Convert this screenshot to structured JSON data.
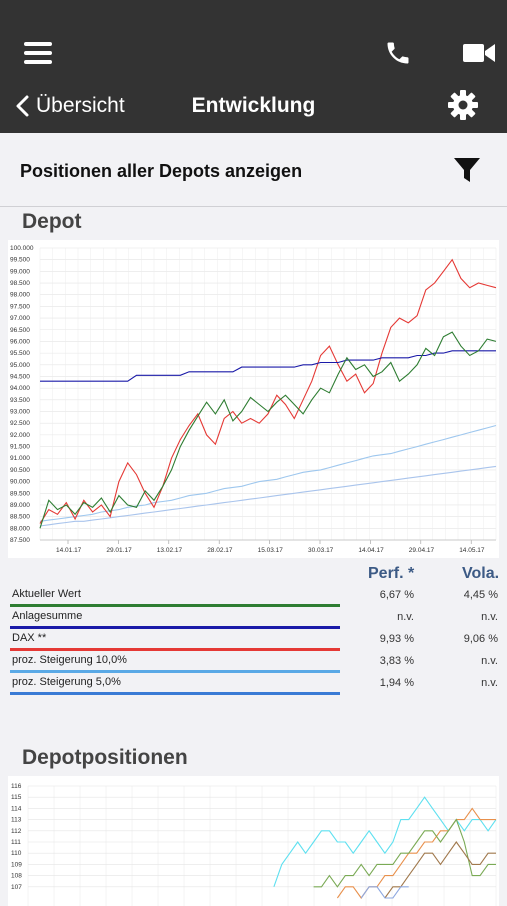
{
  "header": {
    "title": "Entwicklung",
    "back_label": "Übersicht"
  },
  "filter": {
    "label": "Positionen aller Depots anzeigen"
  },
  "depot": {
    "title": "Depot",
    "chart_data": {
      "type": "line",
      "ylim": [
        87500,
        100000
      ],
      "y_ticks": [
        "100.000",
        "99.500",
        "99.000",
        "98.500",
        "98.000",
        "97.500",
        "97.000",
        "96.500",
        "96.000",
        "95.500",
        "95.000",
        "94.500",
        "94.000",
        "93.500",
        "93.000",
        "92.500",
        "92.000",
        "91.500",
        "91.000",
        "90.500",
        "90.000",
        "89.500",
        "89.000",
        "88.500",
        "88.000",
        "87.500"
      ],
      "x_ticks": [
        "14.01.17",
        "29.01.17",
        "13.02.17",
        "28.02.17",
        "15.03.17",
        "30.03.17",
        "14.04.17",
        "29.04.17",
        "14.05.17"
      ],
      "series": [
        {
          "color": "#2e7d32",
          "values": [
            88000,
            89200,
            88800,
            89000,
            88600,
            89100,
            88900,
            89300,
            88700,
            89400,
            89000,
            88900,
            89600,
            89200,
            89800,
            90500,
            91500,
            92200,
            92800,
            93400,
            92900,
            93500,
            92600,
            93000,
            93600,
            93300,
            93000,
            93400,
            93700,
            93300,
            92900,
            93500,
            94000,
            93800,
            94600,
            95300,
            94800,
            95000,
            94500,
            94700,
            95100,
            94300,
            94600,
            95000,
            95700,
            95400,
            96200,
            96400,
            95800,
            95400,
            95600,
            96100,
            96000
          ]
        },
        {
          "color": "#1a1aa8",
          "values": [
            94300,
            94300,
            94300,
            94300,
            94300,
            94300,
            94300,
            94300,
            94300,
            94300,
            94300,
            94550,
            94550,
            94550,
            94550,
            94550,
            94550,
            94700,
            94700,
            94700,
            94700,
            94700,
            94700,
            94900,
            94900,
            94900,
            94900,
            94900,
            94900,
            94900,
            95000,
            95000,
            95100,
            95100,
            95100,
            95200,
            95200,
            95200,
            95200,
            95300,
            95300,
            95300,
            95300,
            95400,
            95400,
            95500,
            95500,
            95600,
            95600,
            95600,
            95600,
            95600,
            95600
          ]
        },
        {
          "color": "#e53935",
          "values": [
            88200,
            88800,
            88600,
            89100,
            88400,
            89200,
            88700,
            89000,
            88500,
            90000,
            90800,
            90300,
            89500,
            88900,
            89800,
            91000,
            91800,
            92400,
            92900,
            92000,
            91600,
            92700,
            93000,
            92500,
            92700,
            92500,
            92900,
            93700,
            93300,
            92700,
            93500,
            94300,
            95400,
            95800,
            95000,
            94300,
            94600,
            93800,
            94200,
            95500,
            96600,
            97000,
            96800,
            97100,
            98200,
            98500,
            99000,
            99500,
            98700,
            98300,
            98500,
            98400,
            98300
          ]
        },
        {
          "color": "#9ec7ee",
          "values": [
            88300,
            88350,
            88400,
            88450,
            88500,
            88550,
            88600,
            88700,
            88750,
            88800,
            88900,
            88950,
            89000,
            89100,
            89150,
            89200,
            89300,
            89400,
            89450,
            89500,
            89600,
            89700,
            89750,
            89800,
            89900,
            90000,
            90050,
            90100,
            90200,
            90300,
            90400,
            90450,
            90500,
            90600,
            90700,
            90800,
            90900,
            91000,
            91100,
            91150,
            91200,
            91300,
            91400,
            91500,
            91600,
            91700,
            91800,
            91900,
            92000,
            92100,
            92200,
            92300,
            92400
          ]
        },
        {
          "color": "#a9c4ec",
          "values": [
            88100,
            88150,
            88200,
            88250,
            88300,
            88300,
            88350,
            88400,
            88450,
            88500,
            88550,
            88600,
            88650,
            88700,
            88750,
            88800,
            88850,
            88900,
            88950,
            89000,
            89050,
            89100,
            89150,
            89200,
            89250,
            89300,
            89350,
            89400,
            89450,
            89500,
            89550,
            89600,
            89650,
            89700,
            89750,
            89800,
            89850,
            89900,
            89950,
            90000,
            90050,
            90100,
            90150,
            90200,
            90250,
            90300,
            90350,
            90400,
            90450,
            90500,
            90550,
            90600,
            90650
          ]
        }
      ]
    }
  },
  "legend": {
    "perf_header": "Perf. *",
    "vola_header": "Vola.",
    "rows": [
      {
        "name": "Aktueller Wert",
        "perf": "6,67 %",
        "vola": "4,45 %",
        "color": "#2e7d32"
      },
      {
        "name": "Anlagesumme",
        "perf": "n.v.",
        "vola": "n.v.",
        "color": "#1a1aa8"
      },
      {
        "name": "DAX **",
        "perf": "9,93 %",
        "vola": "9,06 %",
        "color": "#e53935"
      },
      {
        "name": "proz. Steigerung 10,0%",
        "perf": "3,83 %",
        "vola": "n.v.",
        "color": "#5aa9e6"
      },
      {
        "name": "proz. Steigerung 5,0%",
        "perf": "1,94 %",
        "vola": "n.v.",
        "color": "#3a7bd5"
      }
    ]
  },
  "positions": {
    "title": "Depotpositionen",
    "chart_data": {
      "type": "line",
      "ylim": [
        106,
        116
      ],
      "y_ticks": [
        "116",
        "115",
        "114",
        "113",
        "112",
        "111",
        "110",
        "109",
        "108",
        "107"
      ],
      "series": [
        {
          "color": "#5ee0f0",
          "values": [
            null,
            null,
            null,
            null,
            null,
            null,
            null,
            null,
            null,
            null,
            null,
            null,
            null,
            null,
            null,
            null,
            null,
            null,
            null,
            null,
            null,
            null,
            null,
            null,
            null,
            null,
            null,
            null,
            null,
            null,
            null,
            107,
            109,
            110,
            111,
            110,
            111,
            112,
            112,
            111,
            111,
            110,
            111,
            112,
            111,
            110,
            111,
            113,
            113,
            114,
            115,
            114,
            113,
            112,
            113,
            112,
            113,
            113,
            112,
            113
          ]
        },
        {
          "color": "#e8904c",
          "values": [
            null,
            null,
            null,
            null,
            null,
            null,
            null,
            null,
            null,
            null,
            null,
            null,
            null,
            null,
            null,
            null,
            null,
            null,
            null,
            null,
            null,
            null,
            null,
            null,
            null,
            null,
            null,
            null,
            null,
            null,
            null,
            null,
            null,
            null,
            null,
            null,
            null,
            null,
            null,
            106,
            107,
            107,
            106,
            107,
            107,
            108,
            108,
            109,
            110,
            110,
            111,
            111,
            112,
            112,
            113,
            113,
            114,
            113,
            113,
            113
          ]
        },
        {
          "color": "#7aaa55",
          "values": [
            null,
            null,
            null,
            null,
            null,
            null,
            null,
            null,
            null,
            null,
            null,
            null,
            null,
            null,
            null,
            null,
            null,
            null,
            null,
            null,
            null,
            null,
            null,
            null,
            null,
            null,
            null,
            null,
            null,
            null,
            null,
            null,
            null,
            null,
            null,
            null,
            107,
            107,
            108,
            107,
            108,
            108,
            109,
            108,
            109,
            109,
            109,
            110,
            110,
            111,
            112,
            112,
            111,
            112,
            113,
            111,
            108,
            108,
            109,
            109
          ]
        },
        {
          "color": "#a0784c",
          "values": [
            null,
            null,
            null,
            null,
            null,
            null,
            null,
            null,
            null,
            null,
            null,
            null,
            null,
            null,
            null,
            null,
            null,
            null,
            null,
            null,
            null,
            null,
            null,
            null,
            null,
            null,
            null,
            null,
            null,
            null,
            null,
            null,
            null,
            null,
            null,
            null,
            null,
            null,
            null,
            null,
            null,
            null,
            null,
            null,
            null,
            106,
            107,
            107,
            108,
            109,
            110,
            110,
            109,
            110,
            111,
            110,
            109,
            109,
            110,
            110
          ]
        },
        {
          "color": "#8ea8e0",
          "values": [
            null,
            null,
            null,
            null,
            null,
            null,
            null,
            null,
            null,
            null,
            null,
            null,
            null,
            null,
            null,
            null,
            null,
            null,
            null,
            null,
            null,
            null,
            null,
            null,
            null,
            null,
            null,
            null,
            null,
            null,
            null,
            null,
            null,
            null,
            null,
            null,
            null,
            null,
            null,
            null,
            null,
            null,
            106,
            107,
            107,
            106,
            106,
            107,
            107,
            null,
            null,
            null,
            null,
            null,
            null,
            null,
            null,
            null,
            null,
            null
          ]
        }
      ]
    }
  }
}
